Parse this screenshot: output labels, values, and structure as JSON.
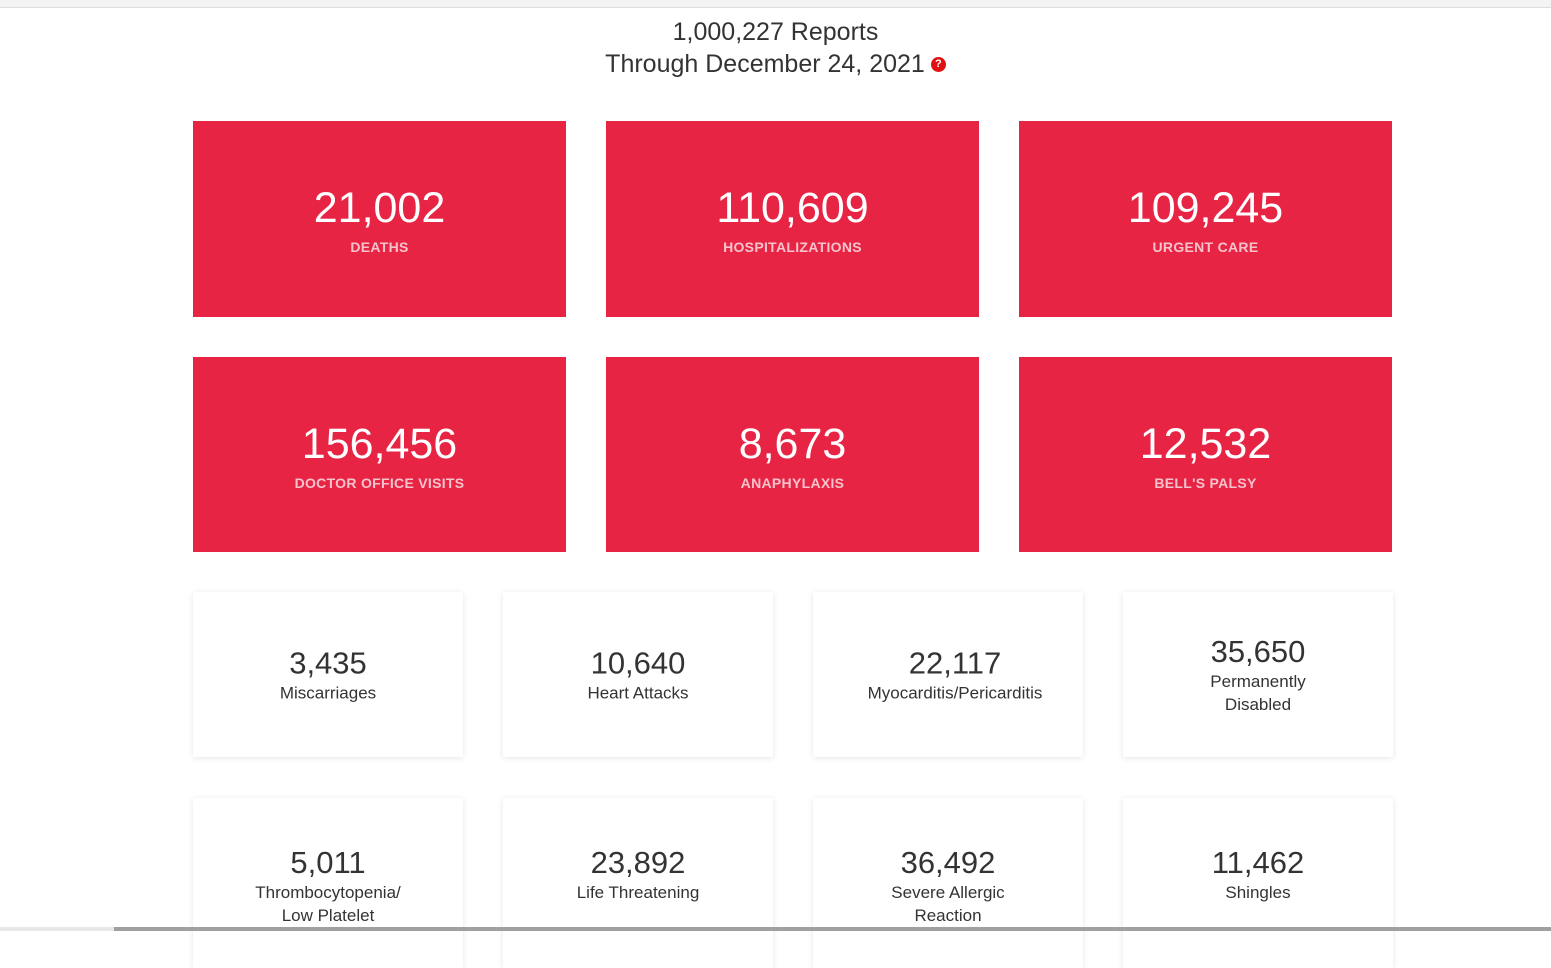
{
  "header": {
    "reports": "1,000,227 Reports",
    "through": "Through December 24, 2021",
    "help_icon": "?"
  },
  "colors": {
    "red": "#e82444",
    "help": "#e01010"
  },
  "red_cards": [
    {
      "value": "21,002",
      "label": "DEATHS"
    },
    {
      "value": "110,609",
      "label": "HOSPITALIZATIONS"
    },
    {
      "value": "109,245",
      "label": "URGENT CARE"
    },
    {
      "value": "156,456",
      "label": "DOCTOR OFFICE VISITS"
    },
    {
      "value": "8,673",
      "label": "ANAPHYLAXIS"
    },
    {
      "value": "12,532",
      "label": "BELL'S PALSY"
    }
  ],
  "white_cards": [
    {
      "value": "3,435",
      "label1": "Miscarriages",
      "label2": ""
    },
    {
      "value": "10,640",
      "label1": "Heart Attacks",
      "label2": ""
    },
    {
      "value": "22,117",
      "label1": "Myocarditis/Pericarditis",
      "label2": ""
    },
    {
      "value": "35,650",
      "label1": "Permanently",
      "label2": "Disabled"
    },
    {
      "value": "5,011",
      "label1": "Thrombocytopenia/",
      "label2": "Low Platelet"
    },
    {
      "value": "23,892",
      "label1": "Life Threatening",
      "label2": ""
    },
    {
      "value": "36,492",
      "label1": "Severe Allergic",
      "label2": "Reaction"
    },
    {
      "value": "11,462",
      "label1": "Shingles",
      "label2": ""
    }
  ]
}
